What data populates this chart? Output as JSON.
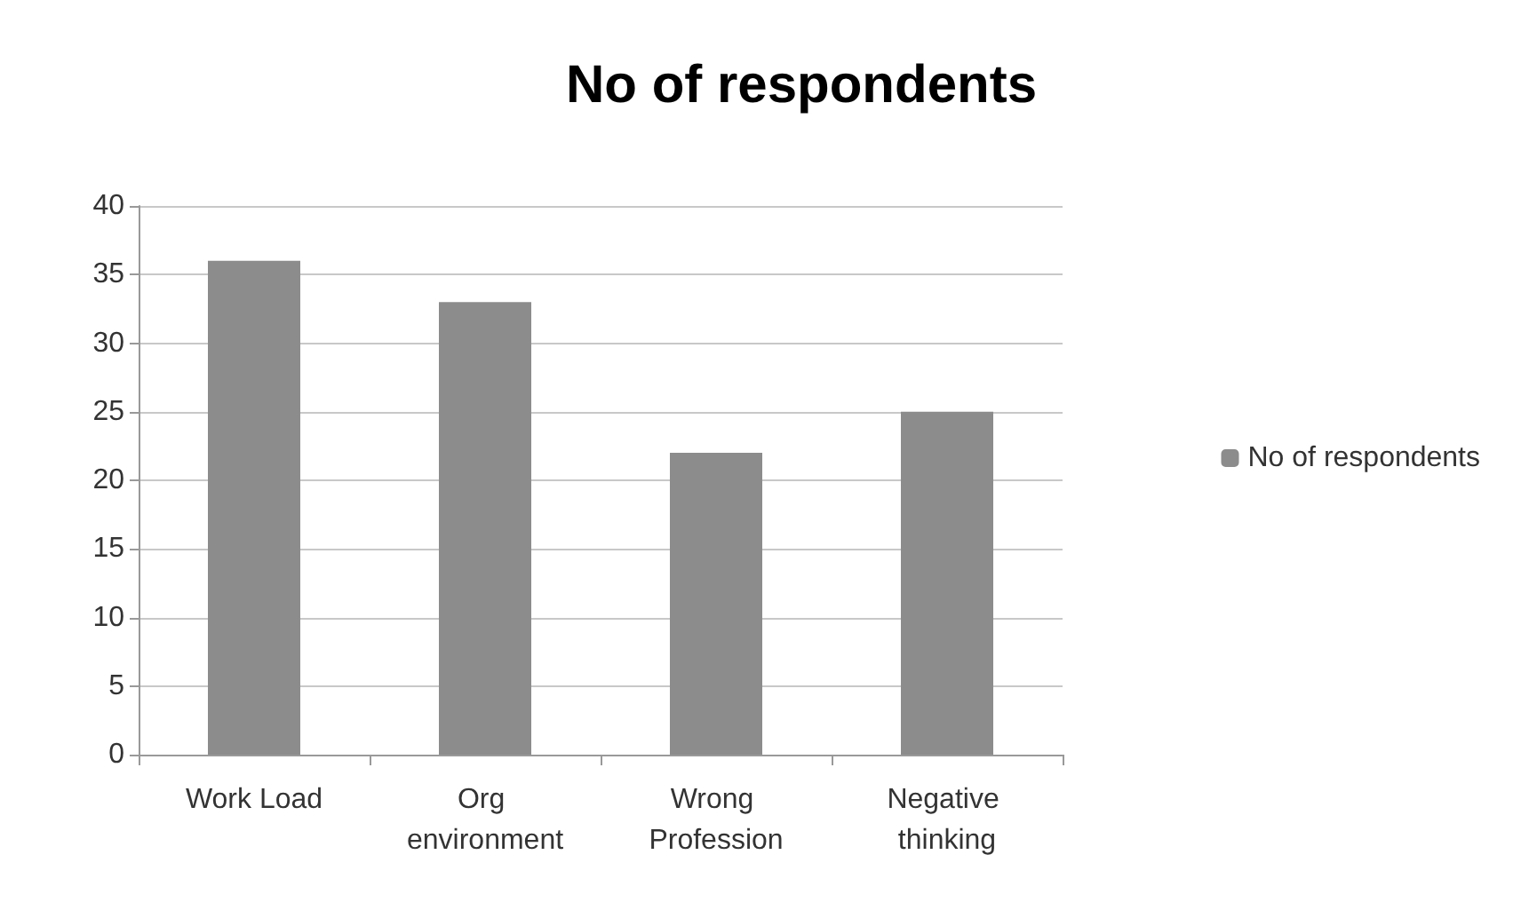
{
  "chart_data": {
    "type": "bar",
    "title": "No of respondents",
    "categories": [
      "Work Load",
      "Org environment",
      "Wrong Profession",
      "Negative thinking"
    ],
    "series": [
      {
        "name": "No of respondents",
        "color": "#8c8c8c",
        "values": [
          36,
          33,
          22,
          25
        ]
      }
    ],
    "ylim": [
      0,
      40
    ],
    "yticks": [
      0,
      5,
      10,
      15,
      20,
      25,
      30,
      35,
      40
    ],
    "grid": "y",
    "legend": "right"
  }
}
